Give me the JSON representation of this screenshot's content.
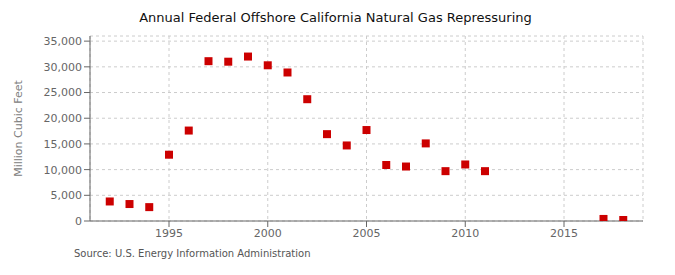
{
  "chart_data": {
    "type": "scatter",
    "title": "Annual Federal Offshore California Natural Gas Repressuring",
    "ylabel": "Million Cubic Feet",
    "annotation": "Source: U.S. Energy Information Administration",
    "x": [
      1992,
      1993,
      1994,
      1995,
      1996,
      1997,
      1998,
      1999,
      2000,
      2001,
      2002,
      2003,
      2004,
      2005,
      2006,
      2007,
      2008,
      2009,
      2010,
      2011,
      2017,
      2018
    ],
    "values": [
      3800,
      3300,
      2700,
      12900,
      17600,
      31100,
      31000,
      32000,
      30300,
      28900,
      23700,
      16900,
      14700,
      17700,
      10900,
      10600,
      15100,
      9700,
      11000,
      9700,
      400,
      200
    ],
    "color": "#cc0000",
    "marker": "square",
    "xlim": [
      1991,
      2019
    ],
    "xticks": [
      1995,
      2000,
      2005,
      2010,
      2015
    ],
    "ylim": [
      0,
      36000
    ],
    "yticks": [
      0,
      {
        "value": 5000,
        "label": "5,000"
      },
      {
        "value": 10000,
        "label": "10,000"
      },
      {
        "value": 15000,
        "label": "15,000"
      },
      {
        "value": 20000,
        "label": "20,000"
      },
      {
        "value": 25000,
        "label": "25,000"
      },
      {
        "value": 30000,
        "label": "30,000"
      },
      {
        "value": 35000,
        "label": "35,000"
      }
    ],
    "grid": true
  }
}
